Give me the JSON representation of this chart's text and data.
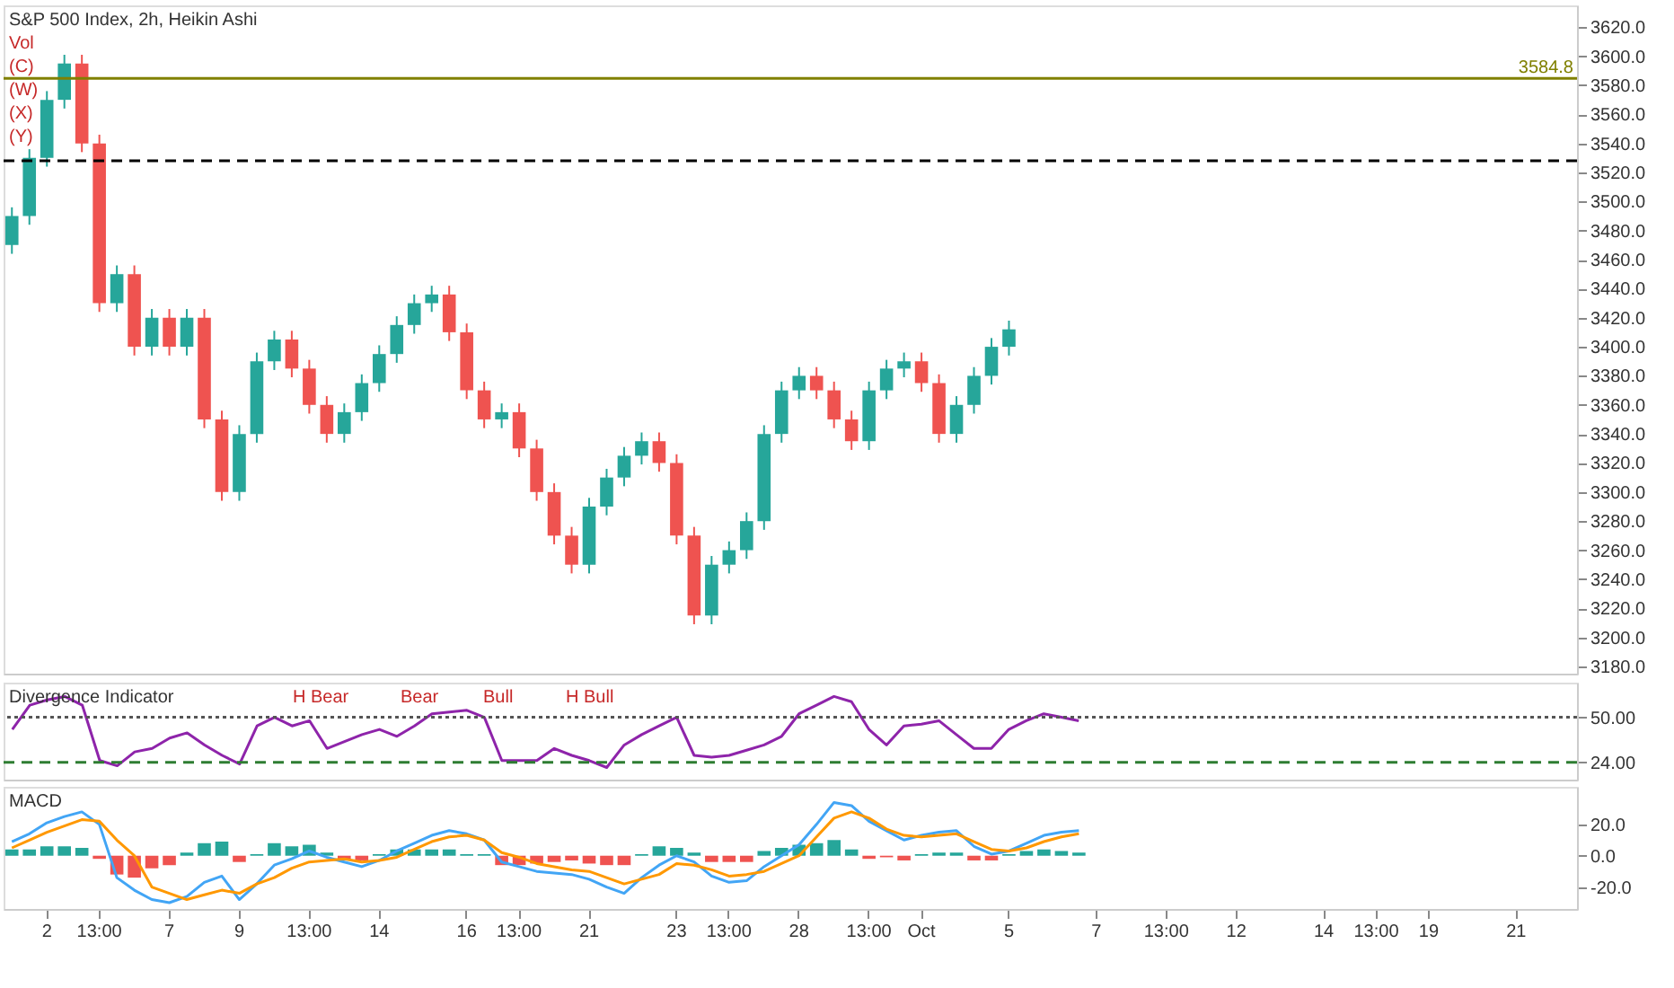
{
  "chart_data": [
    {
      "type": "candlestick",
      "title": "S&P 500 Index, 2h, Heikin Ashi",
      "annotations": [
        "Vol",
        "(C)",
        "(W)",
        "(X)",
        "(Y)"
      ],
      "categories": [
        null,
        null,
        null,
        null,
        null,
        null,
        null,
        null,
        null,
        null,
        null,
        null,
        null,
        null,
        null,
        null,
        null,
        null,
        null,
        null,
        null,
        null,
        null,
        null,
        null,
        null,
        null,
        null,
        null,
        null,
        null,
        null,
        null,
        null,
        null,
        null,
        null,
        null,
        null,
        null,
        null,
        null,
        null,
        null,
        null,
        null,
        null,
        null,
        null,
        null,
        null,
        null,
        null,
        null,
        null,
        null,
        null,
        null,
        null,
        null,
        null,
        null,
        null,
        null,
        null,
        null,
        null,
        null,
        null,
        null,
        null,
        null,
        null,
        null,
        null,
        null,
        null,
        null,
        null,
        null,
        null,
        null,
        null,
        null,
        null,
        null,
        null,
        null,
        null,
        null
      ],
      "ohlc": [
        [
          3470,
          3496,
          3464,
          3490
        ],
        [
          3490,
          3536,
          3484,
          3530
        ],
        [
          3530,
          3576,
          3524,
          3570
        ],
        [
          3570,
          3601,
          3564,
          3595
        ],
        [
          3595,
          3601,
          3534,
          3540
        ],
        [
          3540,
          3546,
          3424,
          3430
        ],
        [
          3430,
          3456,
          3424,
          3450
        ],
        [
          3450,
          3456,
          3394,
          3400
        ],
        [
          3400,
          3426,
          3394,
          3420
        ],
        [
          3420,
          3426,
          3394,
          3400
        ],
        [
          3400,
          3426,
          3394,
          3420
        ],
        [
          3420,
          3426,
          3344,
          3350
        ],
        [
          3350,
          3356,
          3294,
          3300
        ],
        [
          3300,
          3346,
          3294,
          3340
        ],
        [
          3340,
          3396,
          3334,
          3390
        ],
        [
          3390,
          3411,
          3384,
          3405
        ],
        [
          3405,
          3411,
          3379,
          3385
        ],
        [
          3385,
          3391,
          3354,
          3360
        ],
        [
          3360,
          3366,
          3334,
          3340
        ],
        [
          3340,
          3361,
          3334,
          3355
        ],
        [
          3355,
          3381,
          3349,
          3375
        ],
        [
          3375,
          3401,
          3369,
          3395
        ],
        [
          3395,
          3421,
          3389,
          3415
        ],
        [
          3415,
          3436,
          3409,
          3430
        ],
        [
          3430,
          3442,
          3424,
          3436
        ],
        [
          3436,
          3442,
          3404,
          3410
        ],
        [
          3410,
          3416,
          3364,
          3370
        ],
        [
          3370,
          3376,
          3344,
          3350
        ],
        [
          3350,
          3361,
          3344,
          3355
        ],
        [
          3355,
          3361,
          3324,
          3330
        ],
        [
          3330,
          3336,
          3294,
          3300
        ],
        [
          3300,
          3306,
          3264,
          3270
        ],
        [
          3270,
          3276,
          3244,
          3250
        ],
        [
          3250,
          3296,
          3244,
          3290
        ],
        [
          3290,
          3316,
          3284,
          3310
        ],
        [
          3310,
          3331,
          3304,
          3325
        ],
        [
          3325,
          3341,
          3319,
          3335
        ],
        [
          3335,
          3341,
          3314,
          3320
        ],
        [
          3320,
          3326,
          3264,
          3270
        ],
        [
          3270,
          3276,
          3209,
          3215
        ],
        [
          3215,
          3256,
          3209,
          3250
        ],
        [
          3250,
          3266,
          3244,
          3260
        ],
        [
          3260,
          3286,
          3254,
          3280
        ],
        [
          3280,
          3346,
          3274,
          3340
        ],
        [
          3340,
          3376,
          3334,
          3370
        ],
        [
          3370,
          3386,
          3364,
          3380
        ],
        [
          3380,
          3386,
          3364,
          3370
        ],
        [
          3370,
          3376,
          3344,
          3350
        ],
        [
          3350,
          3356,
          3329,
          3335
        ],
        [
          3335,
          3376,
          3329,
          3370
        ],
        [
          3370,
          3391,
          3364,
          3385
        ],
        [
          3385,
          3396,
          3379,
          3390
        ],
        [
          3390,
          3396,
          3369,
          3375
        ],
        [
          3375,
          3381,
          3334,
          3340
        ],
        [
          3340,
          3366,
          3334,
          3360
        ],
        [
          3360,
          3386,
          3354,
          3380
        ],
        [
          3380,
          3406,
          3374,
          3400
        ],
        [
          3400,
          3418,
          3394,
          3412
        ],
        null,
        null,
        null,
        null,
        null,
        null,
        null,
        null,
        null,
        null,
        null,
        null,
        null,
        null,
        null,
        null,
        null,
        null,
        null,
        null,
        null,
        null,
        null,
        null,
        null,
        null,
        null,
        null,
        null,
        null,
        null,
        null
      ],
      "colors": [
        "#26a69a",
        "#26a69a",
        "#26a69a",
        "#26a69a",
        "#ef5350",
        "#ef5350",
        "#26a69a",
        "#ef5350",
        "#26a69a",
        "#ef5350",
        "#26a69a",
        "#ef5350",
        "#ef5350",
        "#26a69a",
        "#26a69a",
        "#26a69a",
        "#ef5350",
        "#ef5350",
        "#ef5350",
        "#26a69a",
        "#26a69a",
        "#26a69a",
        "#26a69a",
        "#26a69a",
        "#26a69a",
        "#ef5350",
        "#ef5350",
        "#ef5350",
        "#26a69a",
        "#ef5350",
        "#ef5350",
        "#ef5350",
        "#ef5350",
        "#26a69a",
        "#26a69a",
        "#26a69a",
        "#26a69a",
        "#ef5350",
        "#ef5350",
        "#ef5350",
        "#26a69a",
        "#26a69a",
        "#26a69a",
        "#26a69a",
        "#26a69a",
        "#26a69a",
        "#ef5350",
        "#ef5350",
        "#ef5350",
        "#26a69a",
        "#26a69a",
        "#26a69a",
        "#ef5350",
        "#ef5350",
        "#26a69a",
        "#26a69a",
        "#26a69a",
        "#26a69a",
        null,
        null,
        null,
        null,
        null,
        null,
        null,
        null,
        null,
        null,
        null,
        null,
        null,
        null,
        null,
        null,
        null,
        null,
        null,
        null,
        null,
        null,
        null,
        null,
        null,
        null,
        null,
        null,
        null,
        null,
        null,
        null
      ],
      "ylim": [
        3175,
        3635
      ],
      "yticks": [
        {
          "value": 3180,
          "label": "3180.0"
        },
        {
          "value": 3200,
          "label": "3200.0"
        },
        {
          "value": 3220,
          "label": "3220.0"
        },
        {
          "value": 3240,
          "label": "3240.0"
        },
        {
          "value": 3260,
          "label": "3260.0"
        },
        {
          "value": 3280,
          "label": "3280.0"
        },
        {
          "value": 3300,
          "label": "3300.0"
        },
        {
          "value": 3320,
          "label": "3320.0"
        },
        {
          "value": 3340,
          "label": "3340.0"
        },
        {
          "value": 3360,
          "label": "3360.0"
        },
        {
          "value": 3380,
          "label": "3380.0"
        },
        {
          "value": 3400,
          "label": "3400.0"
        },
        {
          "value": 3420,
          "label": "3420.0"
        },
        {
          "value": 3440,
          "label": "3440.0"
        },
        {
          "value": 3460,
          "label": "3460.0"
        },
        {
          "value": 3480,
          "label": "3480.0"
        },
        {
          "value": 3500,
          "label": "3500.0"
        },
        {
          "value": 3520,
          "label": "3520.0"
        },
        {
          "value": 3540,
          "label": "3540.0"
        },
        {
          "value": 3560,
          "label": "3560.0"
        },
        {
          "value": 3580,
          "label": "3580.0"
        },
        {
          "value": 3600,
          "label": "3600.0"
        },
        {
          "value": 3620,
          "label": "3620.0"
        }
      ],
      "ref_lines": [
        {
          "axis": "y",
          "value": 3584.8,
          "label": "3584.8",
          "color": "#808000"
        },
        {
          "axis": "y",
          "value": 3528,
          "color": "#000000",
          "line_style": "dashed"
        }
      ],
      "tick_labels": "y"
    },
    {
      "type": "line",
      "title": "Divergence Indicator",
      "annotations": [
        "H Bear",
        "Bear",
        "Bull",
        "H Bull"
      ],
      "categories": [
        null,
        null,
        null,
        null,
        null,
        null,
        null,
        null,
        null,
        null,
        null,
        null,
        null,
        null,
        null,
        null,
        null,
        null,
        null,
        null,
        null,
        null,
        null,
        null,
        null,
        null,
        null,
        null,
        null,
        null,
        null,
        null,
        null,
        null,
        null,
        null,
        null,
        null,
        null,
        null,
        null,
        null,
        null,
        null,
        null,
        null,
        null,
        null,
        null,
        null,
        null,
        null,
        null,
        null,
        null,
        null,
        null,
        null,
        null,
        null,
        null,
        null,
        null,
        null,
        null,
        null,
        null,
        null,
        null,
        null,
        null,
        null,
        null,
        null,
        null,
        null,
        null,
        null,
        null,
        null,
        null,
        null,
        null,
        null,
        null,
        null,
        null,
        null,
        null,
        null
      ],
      "series": [
        {
          "color": "#8e24aa",
          "values": [
            43,
            57,
            60,
            62,
            57,
            25,
            22,
            30,
            32,
            38,
            41,
            34,
            28,
            23,
            45,
            50,
            45,
            48,
            32,
            36,
            40,
            43,
            39,
            45,
            52,
            53,
            54,
            50,
            25,
            25,
            25,
            32,
            28,
            25,
            21,
            34,
            40,
            45,
            50,
            28,
            27,
            28,
            31,
            34,
            39,
            52,
            57,
            62,
            59,
            43,
            34,
            45,
            46,
            48,
            40,
            32,
            32,
            43,
            48,
            52,
            50,
            48,
            null,
            null,
            null,
            null,
            null,
            null,
            null,
            null,
            null,
            null,
            null,
            null,
            null,
            null,
            null,
            null,
            null,
            null,
            null,
            null,
            null,
            null,
            null,
            null,
            null,
            null,
            null,
            null
          ]
        }
      ],
      "ylim": [
        14,
        70
      ],
      "yticks": [
        {
          "value": 24,
          "label": "24.00"
        },
        {
          "value": 50,
          "label": "50.00"
        }
      ],
      "ref_lines": [
        {
          "axis": "y",
          "value": 24,
          "color": "#2e7d32",
          "line_style": "dashed"
        },
        {
          "axis": "y",
          "value": 50,
          "color": "#555555",
          "line_style": "dotted"
        }
      ],
      "tick_labels": "y"
    },
    {
      "type": "line",
      "title": "MACD",
      "categories": [
        null,
        null,
        "2",
        null,
        null,
        "13:00",
        null,
        null,
        null,
        "7",
        null,
        null,
        null,
        "9",
        null,
        null,
        null,
        "13:00",
        null,
        null,
        null,
        "14",
        null,
        null,
        null,
        null,
        "16",
        null,
        null,
        "13:00",
        null,
        null,
        null,
        "21",
        null,
        null,
        null,
        null,
        "23",
        null,
        null,
        "13:00",
        null,
        null,
        null,
        "28",
        null,
        null,
        null,
        "13:00",
        null,
        null,
        "Oct",
        null,
        null,
        null,
        null,
        "5",
        null,
        null,
        null,
        null,
        "7",
        null,
        null,
        null,
        "13:00",
        null,
        null,
        null,
        "12",
        null,
        null,
        null,
        null,
        "14",
        null,
        null,
        "13:00",
        null,
        null,
        "19",
        null,
        null,
        null,
        null,
        "21",
        null,
        null,
        null
      ],
      "series": [
        {
          "type": "bar",
          "values": [
            4,
            4,
            6,
            6,
            5,
            -2,
            -12,
            -14,
            -8,
            -6,
            2,
            8,
            9,
            -4,
            1,
            8,
            6,
            7,
            2,
            -2,
            -3,
            1,
            4,
            4,
            4,
            4,
            1,
            1,
            -6,
            -6,
            -5,
            -4,
            -3,
            -5,
            -6,
            -6,
            1,
            6,
            5,
            2,
            -4,
            -4,
            -4,
            3,
            5,
            7,
            8,
            10,
            4,
            -2,
            -1,
            -3,
            1,
            2,
            2,
            -3,
            -3,
            1,
            3,
            4,
            3,
            2,
            null,
            null,
            null,
            null,
            null,
            null,
            null,
            null,
            null,
            null,
            null,
            null,
            null,
            null,
            null,
            null,
            null,
            null,
            null,
            null,
            null,
            null,
            null,
            null,
            null,
            null,
            null,
            null
          ],
          "colors": [
            "#26a69a",
            "#26a69a",
            "#26a69a",
            "#26a69a",
            "#26a69a",
            "#ef5350",
            "#ef5350",
            "#ef5350",
            "#ef5350",
            "#ef5350",
            "#26a69a",
            "#26a69a",
            "#26a69a",
            "#ef5350",
            "#26a69a",
            "#26a69a",
            "#26a69a",
            "#26a69a",
            "#26a69a",
            "#ef5350",
            "#ef5350",
            "#26a69a",
            "#26a69a",
            "#26a69a",
            "#26a69a",
            "#26a69a",
            "#26a69a",
            "#26a69a",
            "#ef5350",
            "#ef5350",
            "#ef5350",
            "#ef5350",
            "#ef5350",
            "#ef5350",
            "#ef5350",
            "#ef5350",
            "#26a69a",
            "#26a69a",
            "#26a69a",
            "#26a69a",
            "#ef5350",
            "#ef5350",
            "#ef5350",
            "#26a69a",
            "#26a69a",
            "#26a69a",
            "#26a69a",
            "#26a69a",
            "#26a69a",
            "#ef5350",
            "#ef5350",
            "#ef5350",
            "#26a69a",
            "#26a69a",
            "#26a69a",
            "#ef5350",
            "#ef5350",
            "#26a69a",
            "#26a69a",
            "#26a69a",
            "#26a69a",
            "#26a69a",
            null,
            null,
            null,
            null,
            null,
            null,
            null,
            null,
            null,
            null,
            null,
            null,
            null,
            null,
            null,
            null,
            null,
            null,
            null,
            null,
            null,
            null,
            null,
            null,
            null,
            null,
            null,
            null
          ]
        },
        {
          "color": "#42a5f5",
          "values": [
            9,
            14,
            21,
            25,
            28,
            20,
            -14,
            -22,
            -28,
            -30,
            -26,
            -17,
            -13,
            -28,
            -18,
            -6,
            -2,
            3,
            -1,
            -4,
            -7,
            -3,
            3,
            8,
            13,
            16,
            14,
            10,
            -4,
            -7,
            -10,
            -11,
            -12,
            -15,
            -20,
            -24,
            -14,
            -6,
            0,
            -4,
            -13,
            -17,
            -16,
            -7,
            0,
            7,
            20,
            34,
            32,
            22,
            16,
            10,
            13,
            15,
            16,
            6,
            1,
            3,
            8,
            13,
            15,
            16,
            null,
            null,
            null,
            null,
            null,
            null,
            null,
            null,
            null,
            null,
            null,
            null,
            null,
            null,
            null,
            null,
            null,
            null,
            null,
            null,
            null,
            null,
            null,
            null,
            null,
            null,
            null,
            null
          ]
        },
        {
          "color": "#ff9800",
          "values": [
            5,
            10,
            15,
            19,
            23,
            22,
            10,
            0,
            -20,
            -24,
            -28,
            -25,
            -22,
            -24,
            -18,
            -14,
            -8,
            -4,
            -3,
            -2,
            -4,
            -3,
            -1,
            4,
            9,
            12,
            13,
            10,
            2,
            -1,
            -5,
            -7,
            -9,
            -10,
            -14,
            -18,
            -15,
            -12,
            -5,
            -6,
            -9,
            -13,
            -12,
            -10,
            -5,
            0,
            12,
            24,
            28,
            24,
            17,
            13,
            12,
            13,
            14,
            9,
            4,
            3,
            5,
            9,
            12,
            14,
            null,
            null,
            null,
            null,
            null,
            null,
            null,
            null,
            null,
            null,
            null,
            null,
            null,
            null,
            null,
            null,
            null,
            null,
            null,
            null,
            null,
            null,
            null,
            null,
            null,
            null,
            null,
            null
          ]
        }
      ],
      "ylim": [
        -34,
        44
      ],
      "yticks": [
        {
          "value": 20,
          "label": "20.0"
        },
        {
          "value": 0,
          "label": "0.0"
        },
        {
          "value": -20,
          "label": "-20.0"
        }
      ]
    }
  ]
}
